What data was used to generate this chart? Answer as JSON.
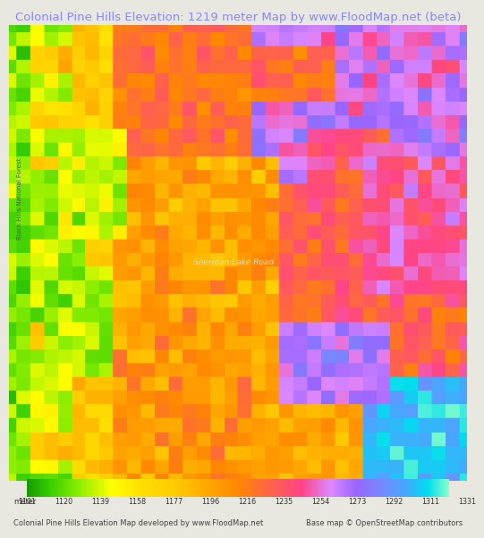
{
  "title": "Colonial Pine Hills Elevation: 1219 meter Map by www.FloodMap.net (beta)",
  "title_color": "#8888ff",
  "title_fontsize": 9.5,
  "bg_color": "#e8e8e0",
  "colorbar_ticks": [
    1101,
    1120,
    1139,
    1158,
    1177,
    1196,
    1216,
    1235,
    1254,
    1273,
    1292,
    1311,
    1331
  ],
  "colorbar_colors": [
    "#33cc00",
    "#66dd00",
    "#ccee00",
    "#ffff00",
    "#ffdd00",
    "#ffaa00",
    "#ff8800",
    "#ff6655",
    "#ff44aa",
    "#cc88ff",
    "#8888ff",
    "#44aaff",
    "#00dddd",
    "#88ffaa"
  ],
  "footer_left": "Colonial Pine Hills Elevation Map developed by www.FloodMap.net",
  "footer_right": "Base map © OpenStreetMap contributors",
  "footer_fontsize": 6.0,
  "side_label": "Black Hills National Forest",
  "sheridan_road": "Sheridan Lake Road",
  "map_bg": "#e8e8e0"
}
